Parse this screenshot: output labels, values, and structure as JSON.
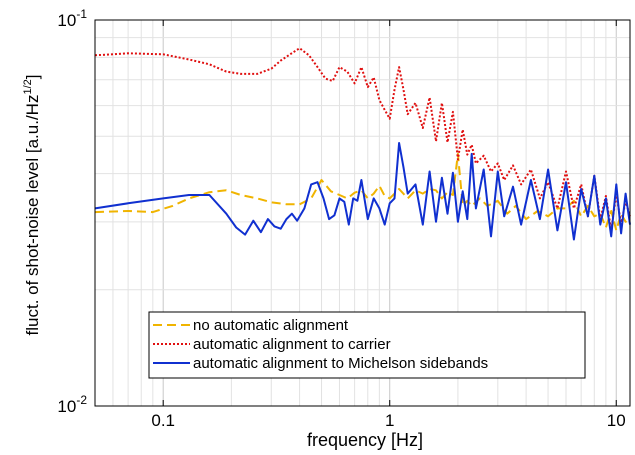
{
  "chart_data": {
    "type": "line",
    "xlabel": "frequency [Hz]",
    "ylabel": "fluct. of shot-noise level [a.u./Hz",
    "ylabel_exponent": "1/2",
    "ylabel_suffix": "]",
    "x_scale": "log",
    "y_scale": "log",
    "xlim": [
      0.05,
      11.5
    ],
    "ylim": [
      0.01,
      0.1
    ],
    "x_ticks": [
      {
        "value": 0.1,
        "label": "0.1"
      },
      {
        "value": 1,
        "label": "1"
      },
      {
        "value": 10,
        "label": "10"
      }
    ],
    "y_ticks": [
      {
        "value": 0.1,
        "base": "10",
        "exp": "-1"
      },
      {
        "value": 0.01,
        "base": "10",
        "exp": "-2"
      }
    ],
    "grid": true,
    "legend_position": "bottom-left",
    "series": [
      {
        "name": "no automatic alignment",
        "color": "#f0b400",
        "dash": "dashed",
        "x": [
          0.05,
          0.07,
          0.09,
          0.11,
          0.13,
          0.16,
          0.19,
          0.22,
          0.26,
          0.3,
          0.35,
          0.4,
          0.45,
          0.5,
          0.55,
          0.6,
          0.65,
          0.7,
          0.75,
          0.8,
          0.85,
          0.9,
          0.95,
          1.0,
          1.1,
          1.2,
          1.3,
          1.4,
          1.5,
          1.6,
          1.7,
          1.8,
          1.9,
          2.0,
          2.1,
          2.2,
          2.3,
          2.5,
          2.7,
          3.0,
          3.3,
          3.6,
          4.0,
          4.5,
          5.0,
          5.5,
          6.0,
          6.5,
          7.0,
          7.5,
          8.0,
          8.5,
          9.0,
          9.5,
          10.0,
          10.5,
          11.0,
          11.5
        ],
        "y": [
          0.0318,
          0.032,
          0.0318,
          0.033,
          0.0345,
          0.0358,
          0.0362,
          0.0352,
          0.0345,
          0.0337,
          0.0333,
          0.0333,
          0.0345,
          0.0385,
          0.036,
          0.0352,
          0.0345,
          0.0357,
          0.0362,
          0.0345,
          0.0355,
          0.0372,
          0.035,
          0.0345,
          0.0365,
          0.0345,
          0.0362,
          0.0355,
          0.0365,
          0.0362,
          0.0345,
          0.0358,
          0.0352,
          0.045,
          0.033,
          0.034,
          0.033,
          0.0345,
          0.033,
          0.034,
          0.0315,
          0.033,
          0.0305,
          0.032,
          0.031,
          0.0325,
          0.0325,
          0.034,
          0.031,
          0.033,
          0.031,
          0.0315,
          0.029,
          0.032,
          0.0285,
          0.0315,
          0.03,
          0.0305
        ]
      },
      {
        "name": "automatic alignment to carrier",
        "color": "#e01010",
        "dash": "dotted",
        "x": [
          0.05,
          0.07,
          0.1,
          0.13,
          0.16,
          0.19,
          0.22,
          0.26,
          0.3,
          0.33,
          0.36,
          0.4,
          0.44,
          0.48,
          0.52,
          0.56,
          0.6,
          0.65,
          0.7,
          0.75,
          0.8,
          0.85,
          0.9,
          0.95,
          1.0,
          1.05,
          1.1,
          1.15,
          1.2,
          1.3,
          1.4,
          1.5,
          1.6,
          1.7,
          1.8,
          1.9,
          2.0,
          2.1,
          2.2,
          2.3,
          2.4,
          2.6,
          2.8,
          3.0,
          3.2,
          3.5,
          3.8,
          4.2,
          4.6,
          5.0,
          5.5,
          6.0,
          6.5,
          7.0,
          7.5,
          8.0,
          8.5,
          9.0,
          9.5,
          10.0,
          10.5,
          11.0,
          11.5
        ],
        "y": [
          0.081,
          0.082,
          0.0815,
          0.079,
          0.0768,
          0.0735,
          0.0725,
          0.0725,
          0.0748,
          0.0785,
          0.0812,
          0.0845,
          0.081,
          0.0755,
          0.0705,
          0.0695,
          0.0755,
          0.0735,
          0.0685,
          0.0755,
          0.067,
          0.071,
          0.062,
          0.0585,
          0.0555,
          0.066,
          0.0755,
          0.066,
          0.057,
          0.061,
          0.0525,
          0.063,
          0.0485,
          0.061,
          0.0482,
          0.0578,
          0.0435,
          0.052,
          0.0448,
          0.0475,
          0.0425,
          0.0445,
          0.0405,
          0.0425,
          0.0385,
          0.042,
          0.0375,
          0.041,
          0.0345,
          0.038,
          0.0325,
          0.0405,
          0.0325,
          0.0375,
          0.031,
          0.0395,
          0.0305,
          0.035,
          0.0285,
          0.0355,
          0.0295,
          0.034,
          0.031
        ]
      },
      {
        "name": "automatic alignment to Michelson sidebands",
        "color": "#1030d0",
        "dash": "solid",
        "x": [
          0.05,
          0.07,
          0.1,
          0.13,
          0.16,
          0.19,
          0.21,
          0.23,
          0.25,
          0.27,
          0.29,
          0.31,
          0.33,
          0.35,
          0.37,
          0.39,
          0.42,
          0.45,
          0.48,
          0.51,
          0.54,
          0.57,
          0.6,
          0.63,
          0.66,
          0.69,
          0.72,
          0.75,
          0.8,
          0.85,
          0.9,
          0.95,
          1.0,
          1.05,
          1.1,
          1.15,
          1.2,
          1.3,
          1.4,
          1.5,
          1.6,
          1.7,
          1.8,
          1.9,
          2.0,
          2.1,
          2.2,
          2.3,
          2.4,
          2.6,
          2.8,
          3.0,
          3.2,
          3.5,
          3.8,
          4.2,
          4.6,
          5.0,
          5.5,
          6.0,
          6.5,
          7.0,
          7.5,
          8.0,
          8.5,
          9.0,
          9.5,
          10.0,
          10.5,
          11.0,
          11.5
        ],
        "y": [
          0.0325,
          0.0335,
          0.0345,
          0.0352,
          0.0352,
          0.0315,
          0.029,
          0.0278,
          0.0302,
          0.0282,
          0.0305,
          0.0292,
          0.0288,
          0.0305,
          0.0315,
          0.0302,
          0.0325,
          0.0375,
          0.038,
          0.0345,
          0.0305,
          0.0312,
          0.0345,
          0.0338,
          0.0295,
          0.0345,
          0.034,
          0.0385,
          0.0305,
          0.0345,
          0.0325,
          0.0295,
          0.0335,
          0.0345,
          0.048,
          0.0415,
          0.0355,
          0.0375,
          0.0295,
          0.0405,
          0.03,
          0.039,
          0.0315,
          0.0402,
          0.03,
          0.036,
          0.0305,
          0.045,
          0.0325,
          0.041,
          0.0275,
          0.0405,
          0.031,
          0.037,
          0.0295,
          0.0385,
          0.0305,
          0.041,
          0.0285,
          0.038,
          0.027,
          0.0365,
          0.031,
          0.0395,
          0.0295,
          0.0345,
          0.0275,
          0.0375,
          0.028,
          0.0355,
          0.0295
        ]
      }
    ]
  }
}
